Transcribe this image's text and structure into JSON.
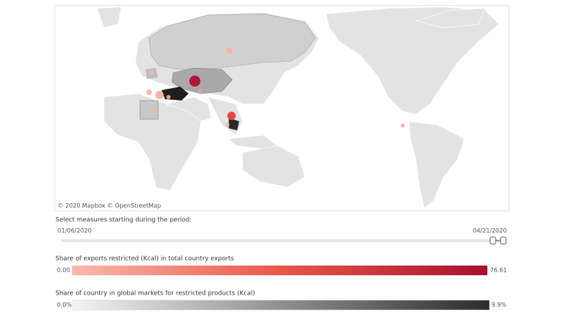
{
  "map": {
    "attribution": "© 2020 Mapbox © OpenStreetMap"
  },
  "filter": {
    "label": "Select measures starting during the period:",
    "start": "01/06/2020",
    "end": "04/21/2020"
  },
  "legends": [
    {
      "title": "Share of exports restricted (Kcal) in total country exports",
      "min": "0.00",
      "max": "76.61"
    },
    {
      "title": "Share of country in global markets for restricted products (Kcal)",
      "min": "0.0%",
      "max": "9.9%"
    }
  ]
}
